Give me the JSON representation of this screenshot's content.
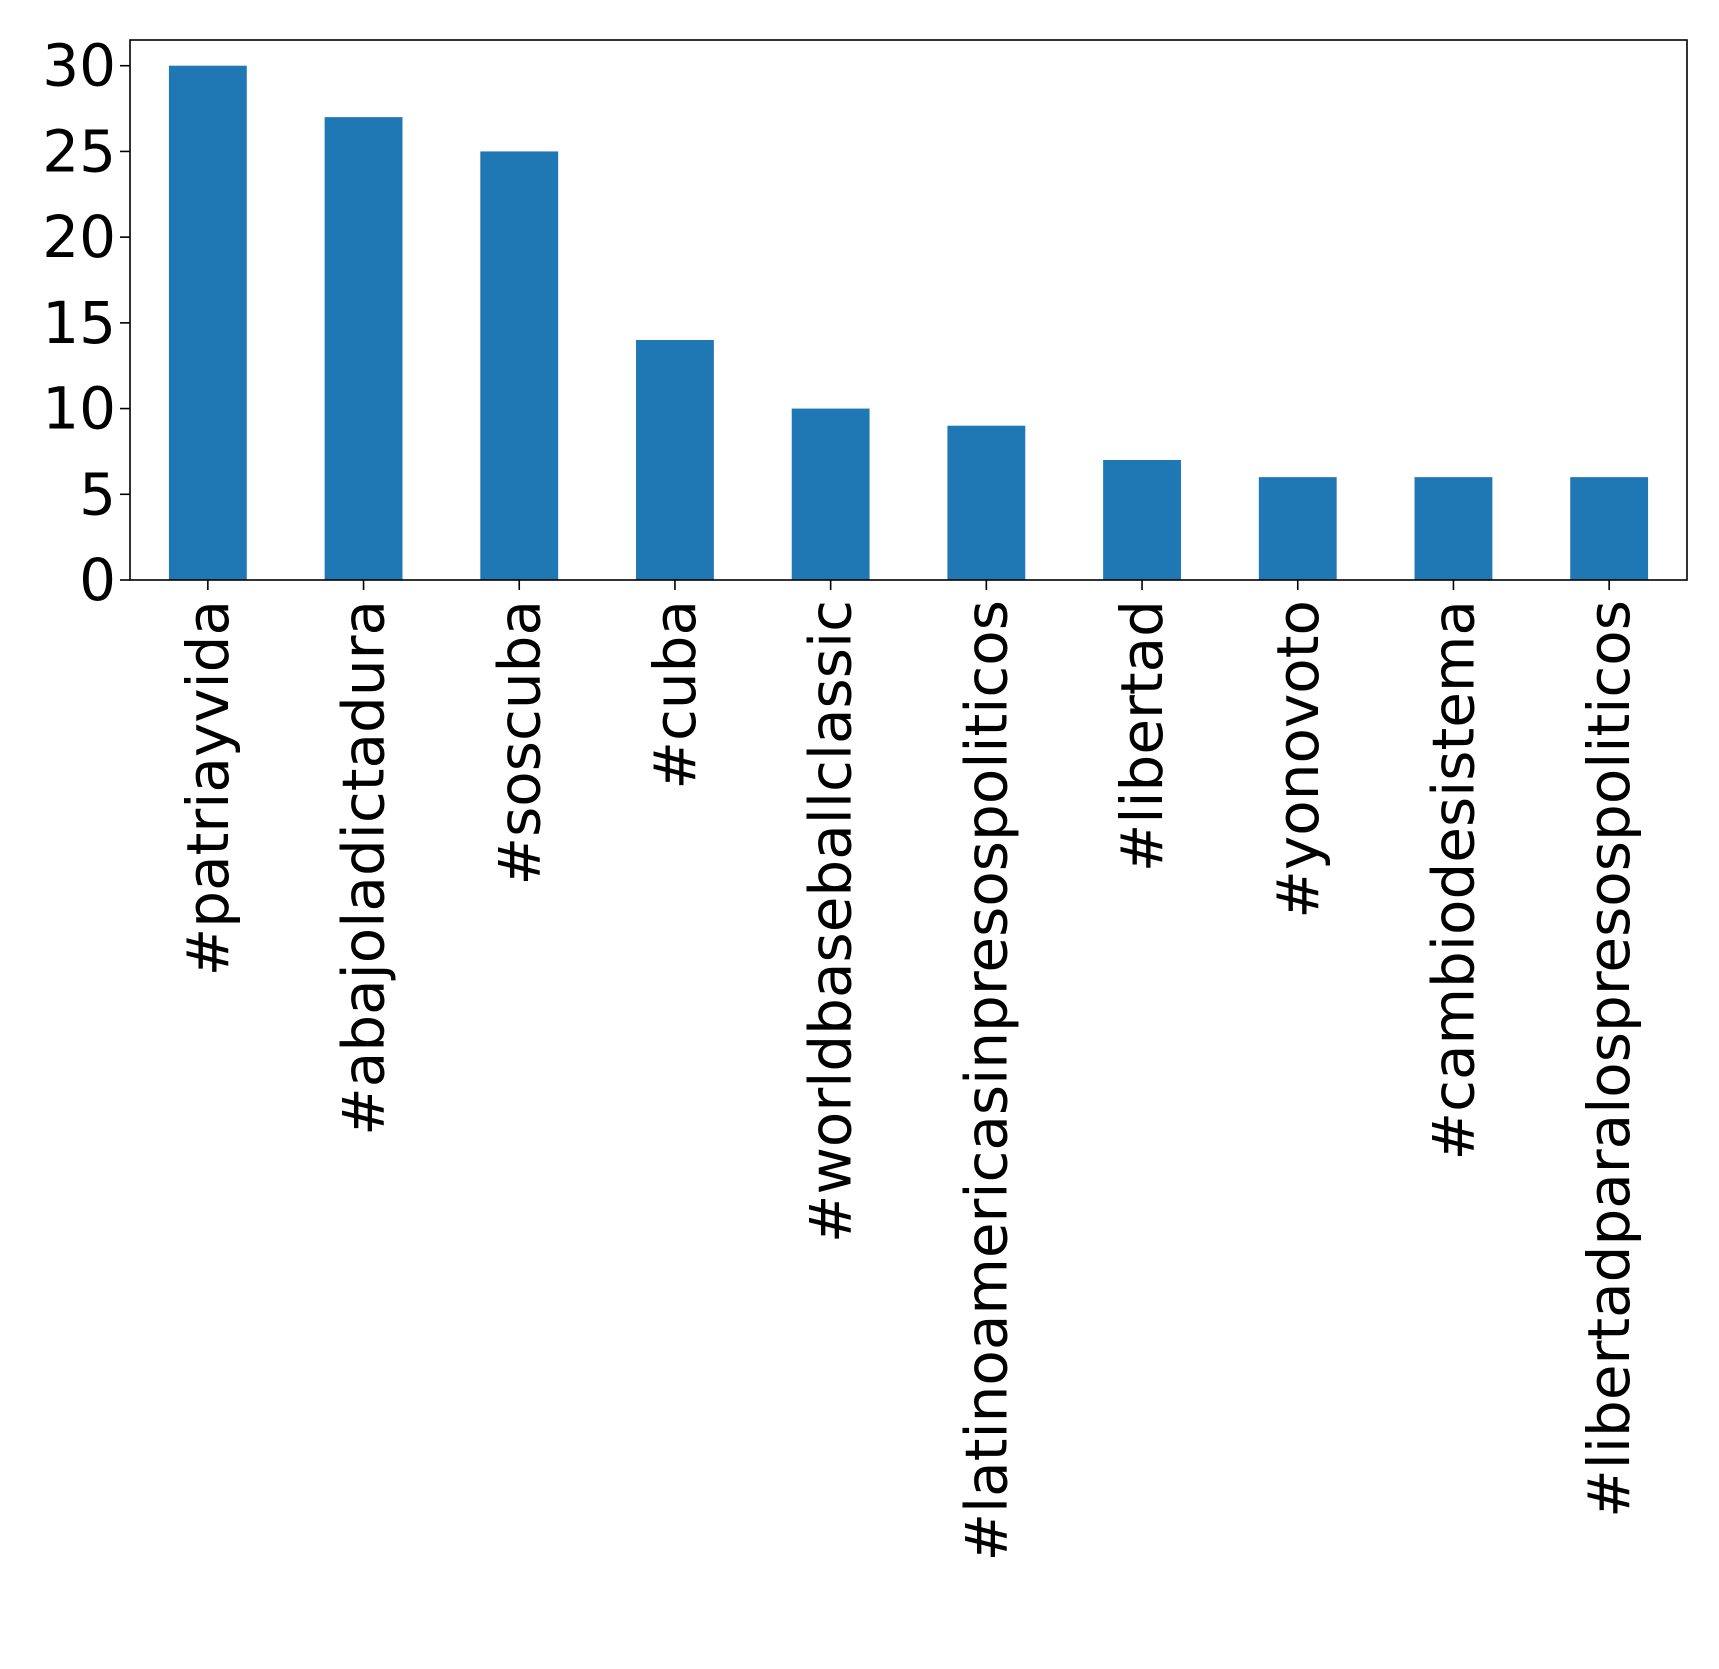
{
  "chart_data": {
    "type": "bar",
    "title": "",
    "xlabel": "",
    "ylabel": "",
    "categories": [
      "#patriayvida",
      "#abajoladictadura",
      "#soscuba",
      "#cuba",
      "#worldbaseballclassic",
      "#latinoamericasinpresospoliticos",
      "#libertad",
      "#yonovoto",
      "#cambiodesistema",
      "#libertadparalospresospoliticos"
    ],
    "values": [
      30,
      27,
      25,
      14,
      10,
      9,
      7,
      6,
      6,
      6
    ],
    "ylim": [
      0,
      31.5
    ],
    "yticks": [
      0,
      5,
      10,
      15,
      20,
      25,
      30
    ],
    "bar_color": "#1f77b4",
    "grid": false,
    "legend": "none"
  }
}
